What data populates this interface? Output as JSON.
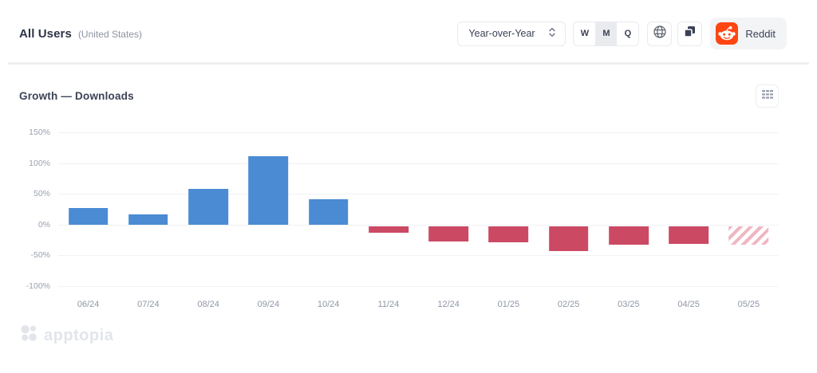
{
  "header": {
    "title": "All Users",
    "subtitle": "(United States)",
    "period_select": {
      "value": "Year-over-Year"
    },
    "granularity": {
      "options": [
        "W",
        "M",
        "Q"
      ],
      "selected": "M"
    },
    "reddit_button": {
      "label": "Reddit",
      "brand_color": "#ff4512"
    }
  },
  "chart": {
    "title": "Growth — Downloads"
  },
  "chart_data": {
    "type": "bar",
    "title": "Growth — Downloads",
    "categories": [
      "06/24",
      "07/24",
      "08/24",
      "09/24",
      "10/24",
      "11/24",
      "12/24",
      "01/25",
      "02/25",
      "03/25",
      "04/25",
      "05/25"
    ],
    "values": [
      27,
      17,
      58,
      111,
      41,
      -13,
      -28,
      -29,
      -43,
      -33,
      -31,
      -33
    ],
    "bar_styles": [
      "solid",
      "solid",
      "solid",
      "solid",
      "solid",
      "solid",
      "solid",
      "solid",
      "solid",
      "solid",
      "solid",
      "hatched"
    ],
    "unit": "%",
    "axis": {
      "ylim": [
        -100,
        150
      ],
      "tick_values": [
        150,
        100,
        50,
        0,
        -50,
        -100
      ],
      "tick_labels": [
        "150%",
        "100%",
        "50%",
        "0%",
        "-50%",
        "-100%"
      ],
      "grid": true,
      "legend": "none"
    },
    "colors": {
      "positive": "#4a8bd4",
      "negative": "#cc4964",
      "hatch": "#f0b6c2"
    }
  },
  "footer": {
    "brand": "apptopia"
  }
}
